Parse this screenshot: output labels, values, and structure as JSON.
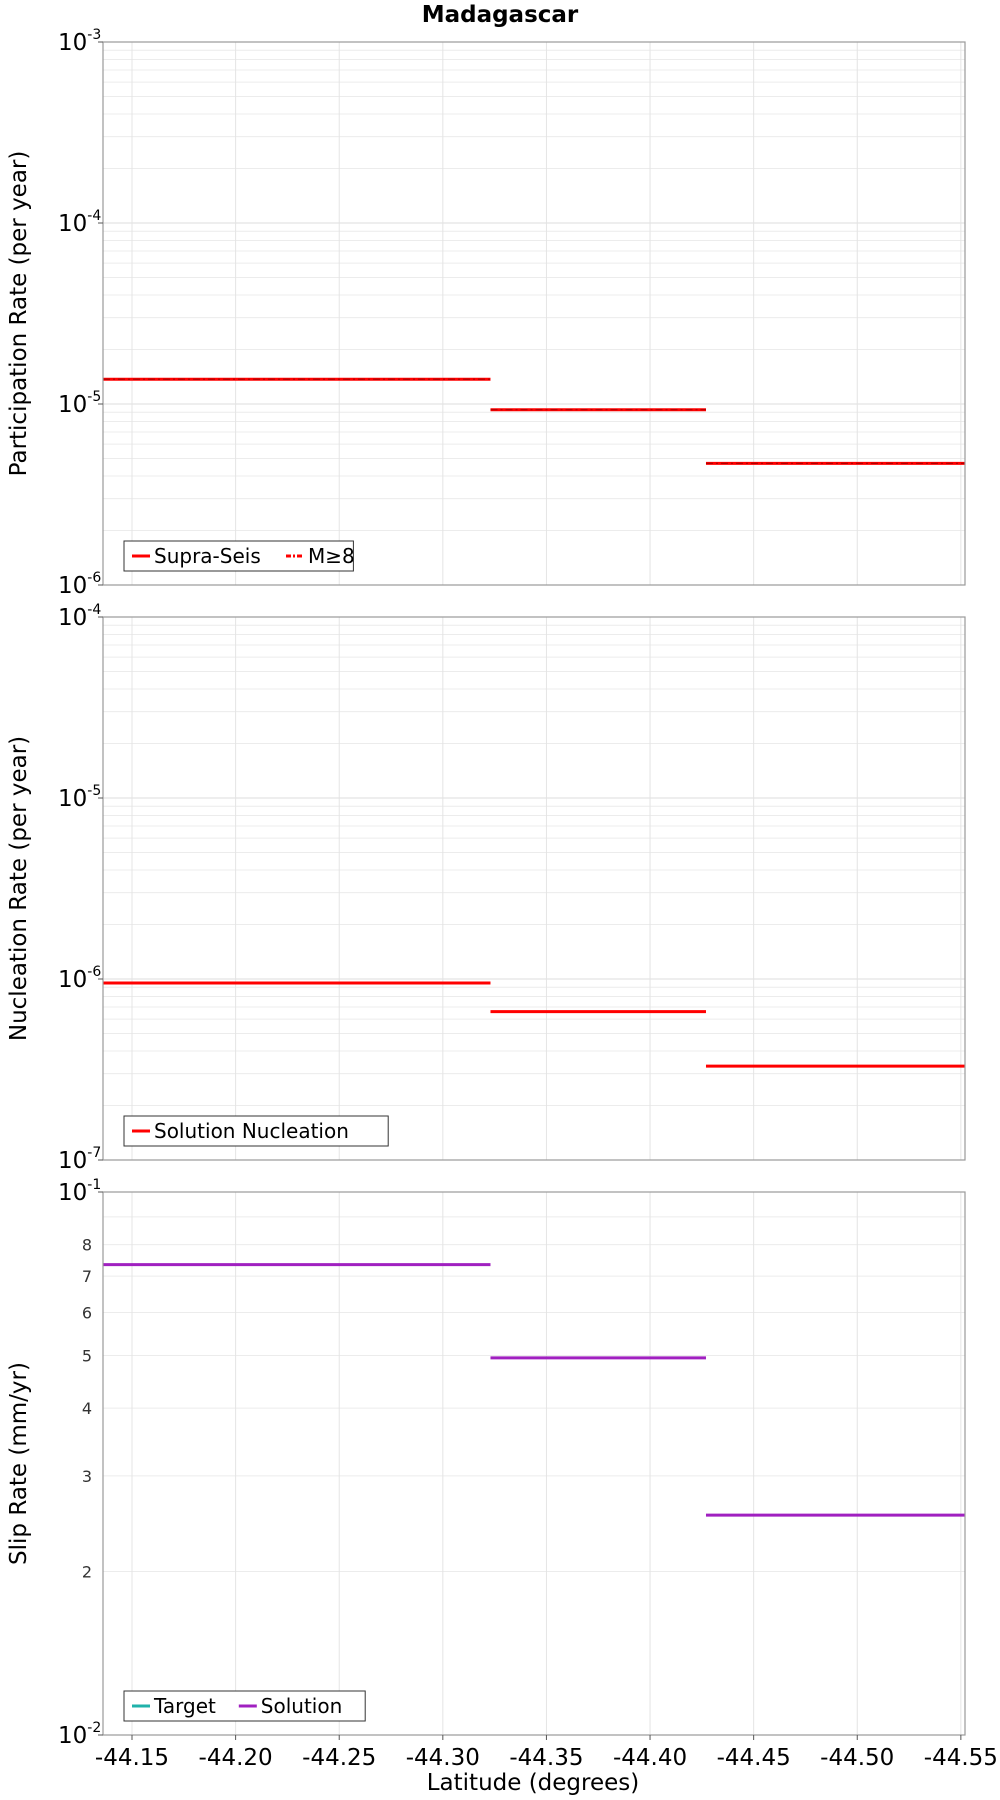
{
  "chart_data": {
    "title": "Madagascar",
    "xlabel": "Latitude (degrees)",
    "x_ticks": [
      "-44.15",
      "-44.20",
      "-44.25",
      "-44.30",
      "-44.35",
      "-44.40",
      "-44.45",
      "-44.50",
      "-44.55"
    ],
    "x_tick_values": [
      -44.15,
      -44.2,
      -44.25,
      -44.3,
      -44.35,
      -44.4,
      -44.45,
      -44.5,
      -44.55
    ],
    "xlim": [
      -44.136,
      -44.552
    ],
    "grid": true,
    "panels": [
      {
        "type": "line",
        "ylabel": "Participation Rate (per year)",
        "yscale": "log",
        "ylim": [
          1e-06,
          0.001
        ],
        "major_ticks": [
          {
            "value": 1e-06,
            "base": "10",
            "exp": "-6"
          },
          {
            "value": 1e-05,
            "base": "10",
            "exp": "-5"
          },
          {
            "value": 0.0001,
            "base": "10",
            "exp": "-4"
          },
          {
            "value": 0.001,
            "base": "10",
            "exp": "-3"
          }
        ],
        "minor_labels": [],
        "legend": {
          "position": "bottom-left",
          "entries": [
            {
              "name": "Supra-Seis",
              "color": "#ff0000",
              "style": "solid"
            },
            {
              "name": "M≥8",
              "color": "#ff0000",
              "style": "dash-dot"
            }
          ]
        },
        "series": [
          {
            "name": "Supra-Seis",
            "color": "#ff0000",
            "style": "solid",
            "segments": [
              {
                "x": [
                  -44.136,
                  -44.323
                ],
                "y": 1.37e-05
              },
              {
                "x": [
                  -44.323,
                  -44.427
                ],
                "y": 9.3e-06
              },
              {
                "x": [
                  -44.427,
                  -44.552
                ],
                "y": 4.7e-06
              }
            ]
          },
          {
            "name": "M≥8",
            "color": "#ff0000",
            "style": "dash-dot",
            "segments": [
              {
                "x": [
                  -44.136,
                  -44.323
                ],
                "y": 1.37e-05
              },
              {
                "x": [
                  -44.323,
                  -44.427
                ],
                "y": 9.3e-06
              },
              {
                "x": [
                  -44.427,
                  -44.552
                ],
                "y": 4.7e-06
              }
            ]
          }
        ]
      },
      {
        "type": "line",
        "ylabel": "Nucleation Rate (per year)",
        "yscale": "log",
        "ylim": [
          1e-07,
          0.0001
        ],
        "major_ticks": [
          {
            "value": 1e-07,
            "base": "10",
            "exp": "-7"
          },
          {
            "value": 1e-06,
            "base": "10",
            "exp": "-6"
          },
          {
            "value": 1e-05,
            "base": "10",
            "exp": "-5"
          },
          {
            "value": 0.0001,
            "base": "10",
            "exp": "-4"
          }
        ],
        "minor_labels": [],
        "legend": {
          "position": "bottom-left",
          "entries": [
            {
              "name": "Solution Nucleation",
              "color": "#ff0000",
              "style": "solid"
            }
          ]
        },
        "series": [
          {
            "name": "Solution Nucleation",
            "color": "#ff0000",
            "style": "solid",
            "segments": [
              {
                "x": [
                  -44.136,
                  -44.323
                ],
                "y": 9.5e-07
              },
              {
                "x": [
                  -44.323,
                  -44.427
                ],
                "y": 6.6e-07
              },
              {
                "x": [
                  -44.427,
                  -44.552
                ],
                "y": 3.3e-07
              }
            ]
          }
        ]
      },
      {
        "type": "line",
        "ylabel": "Slip Rate (mm/yr)",
        "yscale": "log",
        "ylim": [
          0.01,
          0.1
        ],
        "major_ticks": [
          {
            "value": 0.01,
            "base": "10",
            "exp": "-2"
          },
          {
            "value": 0.1,
            "base": "10",
            "exp": "-1"
          }
        ],
        "minor_labels": [
          {
            "value": 0.02,
            "label": "2"
          },
          {
            "value": 0.03,
            "label": "3"
          },
          {
            "value": 0.04,
            "label": "4"
          },
          {
            "value": 0.05,
            "label": "5"
          },
          {
            "value": 0.06,
            "label": "6"
          },
          {
            "value": 0.07,
            "label": "7"
          },
          {
            "value": 0.08,
            "label": "8"
          }
        ],
        "legend": {
          "position": "bottom-left",
          "entries": [
            {
              "name": "Target",
              "color": "#20b2aa",
              "style": "solid"
            },
            {
              "name": "Solution",
              "color": "#a020c0",
              "style": "solid"
            }
          ]
        },
        "series": [
          {
            "name": "Solution",
            "color": "#a020c0",
            "style": "solid",
            "segments": [
              {
                "x": [
                  -44.136,
                  -44.323
                ],
                "y": 0.0735
              },
              {
                "x": [
                  -44.323,
                  -44.427
                ],
                "y": 0.0495
              },
              {
                "x": [
                  -44.427,
                  -44.552
                ],
                "y": 0.0254
              }
            ]
          }
        ]
      }
    ]
  }
}
